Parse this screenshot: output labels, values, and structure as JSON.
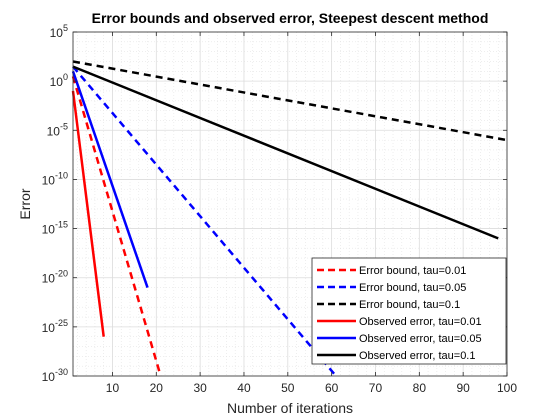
{
  "chart_data": {
    "type": "line",
    "title": "Error bounds and observed error, Steepest descent method",
    "xlabel": "Number of iterations",
    "ylabel": "Error",
    "xlim": [
      1,
      100
    ],
    "ylim": [
      1e-30,
      100000.0
    ],
    "yscale": "log",
    "grid": true,
    "minor_grid": true,
    "legend_position": "bottom-right",
    "xticks": [
      10,
      20,
      30,
      40,
      50,
      60,
      70,
      80,
      90,
      100
    ],
    "xtick_labels": [
      "10",
      "20",
      "30",
      "40",
      "50",
      "60",
      "70",
      "80",
      "90",
      "100"
    ],
    "yticks": [
      {
        "value": 100000.0,
        "base": "10",
        "exp": "5"
      },
      {
        "value": 1.0,
        "base": "10",
        "exp": "0"
      },
      {
        "value": 1e-05,
        "base": "10",
        "exp": "-5"
      },
      {
        "value": 1e-10,
        "base": "10",
        "exp": "-10"
      },
      {
        "value": 1e-15,
        "base": "10",
        "exp": "-15"
      },
      {
        "value": 1e-20,
        "base": "10",
        "exp": "-20"
      },
      {
        "value": 1e-25,
        "base": "10",
        "exp": "-25"
      },
      {
        "value": 1e-30,
        "base": "10",
        "exp": "-30"
      }
    ],
    "series": [
      {
        "name": "Error bound, tau=0.01",
        "color": "#ff0000",
        "dash": true,
        "x": [
          1,
          21
        ],
        "y": [
          3.0,
          1e-30
        ]
      },
      {
        "name": "Error bound, tau=0.05",
        "color": "#0000ff",
        "dash": true,
        "x": [
          1,
          61
        ],
        "y": [
          30.0,
          1e-30
        ]
      },
      {
        "name": "Error bound, tau=0.1",
        "color": "#000000",
        "dash": true,
        "x": [
          1,
          100
        ],
        "y": [
          100.0,
          1e-06
        ]
      },
      {
        "name": "Observed error, tau=0.01",
        "color": "#ff0000",
        "dash": false,
        "x": [
          1,
          8
        ],
        "y": [
          0.1,
          1e-26
        ]
      },
      {
        "name": "Observed error, tau=0.05",
        "color": "#0000ff",
        "dash": false,
        "x": [
          1,
          18
        ],
        "y": [
          10.0,
          1e-21
        ]
      },
      {
        "name": "Observed error, tau=0.1",
        "color": "#000000",
        "dash": false,
        "x": [
          1,
          98
        ],
        "y": [
          30.0,
          1e-16
        ]
      }
    ]
  }
}
